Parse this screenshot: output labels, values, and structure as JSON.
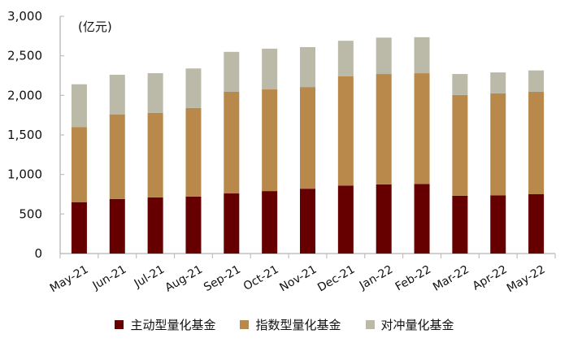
{
  "chart_data": {
    "type": "bar",
    "stacked": true,
    "title": "",
    "unit_label": "(亿元)",
    "xlabel": "",
    "ylabel": "",
    "ylim": [
      0,
      3000
    ],
    "yticks": [
      0,
      500,
      1000,
      1500,
      2000,
      2500,
      3000
    ],
    "ytick_labels": [
      "0",
      "500",
      "1,000",
      "1,500",
      "2,000",
      "2,500",
      "3,000"
    ],
    "grid": false,
    "legend_position": "bottom",
    "categories": [
      "May-21",
      "Jun-21",
      "Jul-21",
      "Aug-21",
      "Sep-21",
      "Oct-21",
      "Nov-21",
      "Dec-21",
      "Jan-22",
      "Feb-22",
      "Mar-22",
      "Apr-22",
      "May-22"
    ],
    "series": [
      {
        "name": "主动型量化基金",
        "color": "#660000",
        "values": [
          650,
          690,
          710,
          720,
          760,
          790,
          820,
          860,
          875,
          880,
          730,
          735,
          750
        ]
      },
      {
        "name": "指数型量化基金",
        "color": "#B8894A",
        "values": [
          950,
          1070,
          1070,
          1120,
          1285,
          1285,
          1285,
          1380,
          1395,
          1400,
          1275,
          1290,
          1295
        ]
      },
      {
        "name": "对冲量化基金",
        "color": "#BBBAA8",
        "values": [
          540,
          500,
          500,
          500,
          505,
          515,
          505,
          450,
          460,
          455,
          265,
          265,
          270
        ]
      }
    ]
  },
  "legend": {
    "items": [
      {
        "label": "主动型量化基金",
        "color": "#660000"
      },
      {
        "label": "指数型量化基金",
        "color": "#B8894A"
      },
      {
        "label": "对冲量化基金",
        "color": "#BBBAA8"
      }
    ]
  },
  "colors": {
    "axis": "#BFBFBF",
    "text": "#111111"
  }
}
